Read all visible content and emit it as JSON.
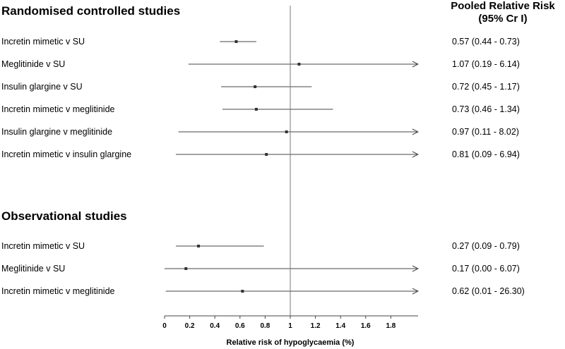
{
  "header": {
    "line1": "Pooled Relative Risk",
    "line2": "(95% Cr I)"
  },
  "chart_data": {
    "type": "forest",
    "xlabel": "Relative risk of hypoglycaemia (%)",
    "xlim": [
      0,
      1.95
    ],
    "ticks": [
      "0",
      "0.2",
      "0.4",
      "0.6",
      "0.8",
      "1",
      "1.2",
      "1.4",
      "1.6",
      "1.8"
    ],
    "reference_line": 1,
    "grid": false,
    "sections": [
      {
        "title": "Randomised controlled studies",
        "rows": [
          {
            "label": "Incretin mimetic v SU",
            "point": 0.57,
            "lower": 0.44,
            "upper": 0.73,
            "text": "0.57 (0.44 - 0.73)"
          },
          {
            "label": "Meglitinide v SU",
            "point": 1.07,
            "lower": 0.19,
            "upper": 6.14,
            "text": "1.07 (0.19 - 6.14)"
          },
          {
            "label": "Insulin glargine v SU",
            "point": 0.72,
            "lower": 0.45,
            "upper": 1.17,
            "text": "0.72 (0.45 - 1.17)"
          },
          {
            "label": "Incretin mimetic v meglitinide",
            "point": 0.73,
            "lower": 0.46,
            "upper": 1.34,
            "text": "0.73 (0.46 - 1.34)"
          },
          {
            "label": "Insulin glargine v meglitinide",
            "point": 0.97,
            "lower": 0.11,
            "upper": 8.02,
            "text": "0.97 (0.11 - 8.02)"
          },
          {
            "label": "Incretin mimetic v insulin glargine",
            "point": 0.81,
            "lower": 0.09,
            "upper": 6.94,
            "text": "0.81 (0.09 - 6.94)"
          }
        ]
      },
      {
        "title": "Observational studies",
        "rows": [
          {
            "label": "Incretin mimetic v SU",
            "point": 0.27,
            "lower": 0.09,
            "upper": 0.79,
            "text": "0.27 (0.09 - 0.79)"
          },
          {
            "label": "Meglitinide v SU",
            "point": 0.17,
            "lower": 0.0,
            "upper": 6.07,
            "text": "0.17 (0.00 - 6.07)"
          },
          {
            "label": "Incretin mimetic v meglitinide",
            "point": 0.62,
            "lower": 0.01,
            "upper": 26.3,
            "text": "0.62 (0.01 - 26.30)"
          }
        ]
      }
    ]
  }
}
